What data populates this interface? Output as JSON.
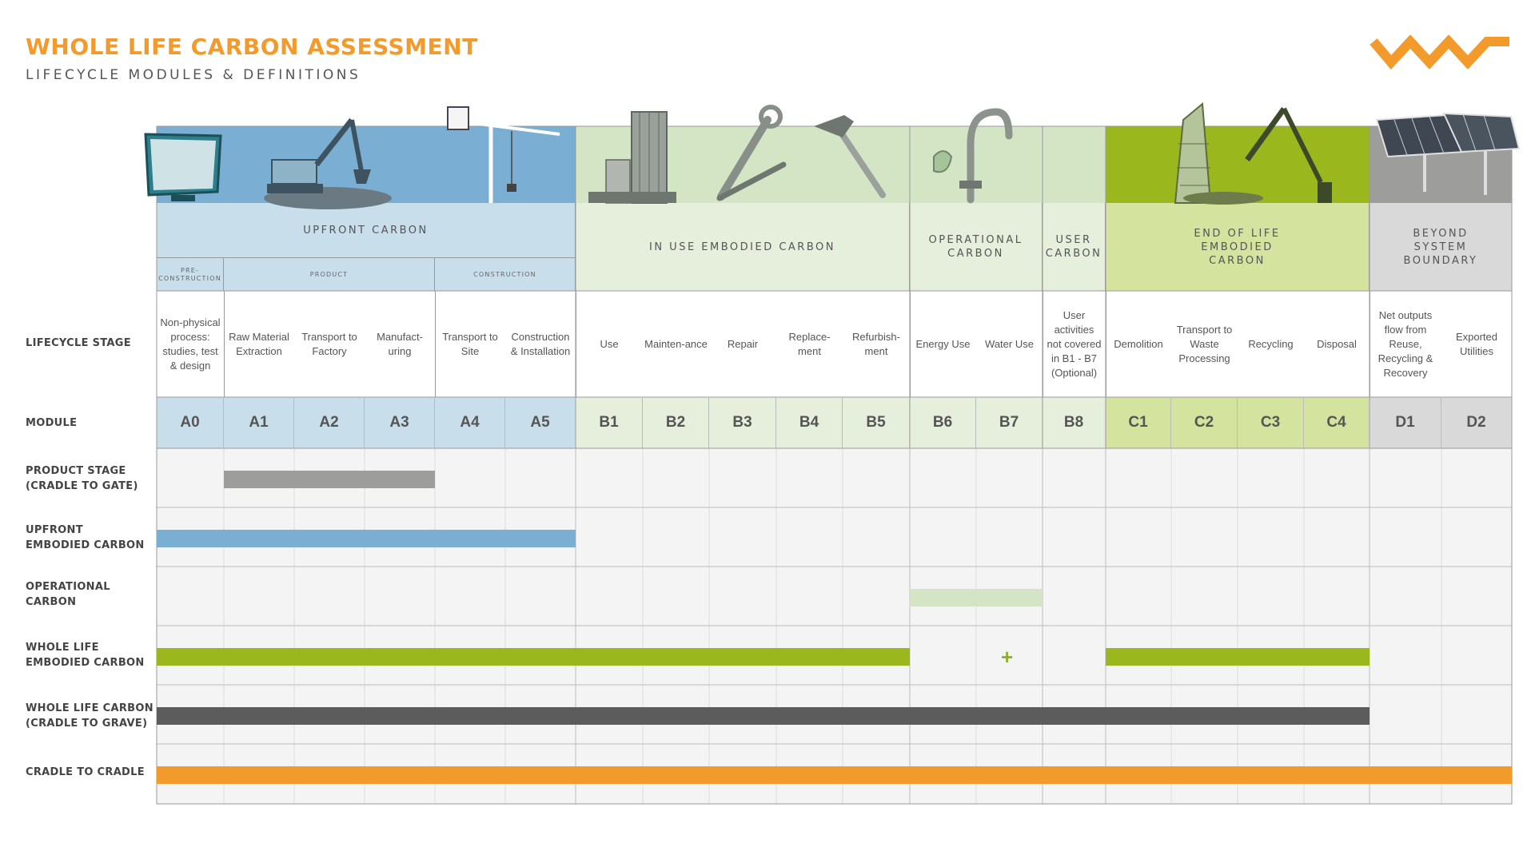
{
  "header": {
    "title": "WHOLE LIFE CARBON ASSESSMENT",
    "subtitle": "LIFECYCLE MODULES & DEFINITIONS"
  },
  "colors": {
    "accent_orange": "#f39a2c",
    "upfront_blue": "#7aaed3",
    "upfront_light": "#c8deeb",
    "inuse_light": "#e6efdc",
    "operational_light": "#d4e5c6",
    "eol_green": "#9ab71e",
    "eol_light": "#d4e39d",
    "beyond_grey": "#d9d9d9",
    "product_grey": "#9d9d9b",
    "cradle_grave_dark": "#5c5c5c"
  },
  "bands": [
    {
      "label": "UPFRONT CARBON"
    },
    {
      "label": "IN USE EMBODIED CARBON"
    },
    {
      "label": "OPERATIONAL CARBON"
    },
    {
      "label": "USER CARBON"
    },
    {
      "label": "END OF LIFE EMBODIED CARBON"
    },
    {
      "label": "BEYOND SYSTEM BOUNDARY"
    }
  ],
  "subbands": [
    {
      "label": "PRE-CONSTRUCTION"
    },
    {
      "label": "PRODUCT"
    },
    {
      "label": "CONSTRUCTION"
    }
  ],
  "row_labels": {
    "lifecycle_stage": "LIFECYCLE STAGE",
    "module": "MODULE",
    "product_stage": "PRODUCT STAGE (CRADLE TO GATE)",
    "upfront_embodied": "UPFRONT EMBODIED CARBON",
    "operational": "OPERATIONAL CARBON",
    "whole_life_embodied": "WHOLE LIFE EMBODIED CARBON",
    "whole_life_carbon": "WHOLE LIFE CARBON (CRADLE TO GRAVE)",
    "cradle_to_cradle": "CRADLE TO CRADLE"
  },
  "modules": [
    {
      "code": "A0",
      "stage": "Non-physical process: studies, test & design"
    },
    {
      "code": "A1",
      "stage": "Raw Material Extraction"
    },
    {
      "code": "A2",
      "stage": "Transport to Factory"
    },
    {
      "code": "A3",
      "stage": "Manufact-uring"
    },
    {
      "code": "A4",
      "stage": "Transport to Site"
    },
    {
      "code": "A5",
      "stage": "Construction & Installation"
    },
    {
      "code": "B1",
      "stage": "Use"
    },
    {
      "code": "B2",
      "stage": "Mainten-ance"
    },
    {
      "code": "B3",
      "stage": "Repair"
    },
    {
      "code": "B4",
      "stage": "Replace-ment"
    },
    {
      "code": "B5",
      "stage": "Refurbish-ment"
    },
    {
      "code": "B6",
      "stage": "Energy Use"
    },
    {
      "code": "B7",
      "stage": "Water Use"
    },
    {
      "code": "B8",
      "stage": "User activities not covered in B1 - B7 (Optional)"
    },
    {
      "code": "C1",
      "stage": "Demolition"
    },
    {
      "code": "C2",
      "stage": "Transport to Waste Processing"
    },
    {
      "code": "C3",
      "stage": "Recycling"
    },
    {
      "code": "C4",
      "stage": "Disposal"
    },
    {
      "code": "D1",
      "stage": "Net outputs flow from Reuse, Recycling & Recovery"
    },
    {
      "code": "D2",
      "stage": "Exported Utilities"
    }
  ],
  "coverage": {
    "product_stage": [
      "A1",
      "A3"
    ],
    "upfront_embodied": [
      "A0",
      "A5"
    ],
    "operational": [
      "B6",
      "B7"
    ],
    "whole_life_embodied": [
      [
        "A0",
        "B5"
      ],
      [
        "C1",
        "C4"
      ]
    ],
    "whole_life_embodied_plus_module": "B7",
    "whole_life_carbon": [
      "A0",
      "C4"
    ],
    "cradle_to_cradle": [
      "A0",
      "D2"
    ]
  },
  "plus_symbol": "+",
  "icons": [
    "computer-monitor-icon",
    "excavator-icon",
    "tower-crane-icon",
    "building-icon",
    "wrench-icon",
    "hammer-icon",
    "faucet-icon",
    "demolition-excavator-icon",
    "solar-panel-icon",
    "orange-zigzag-logo"
  ]
}
